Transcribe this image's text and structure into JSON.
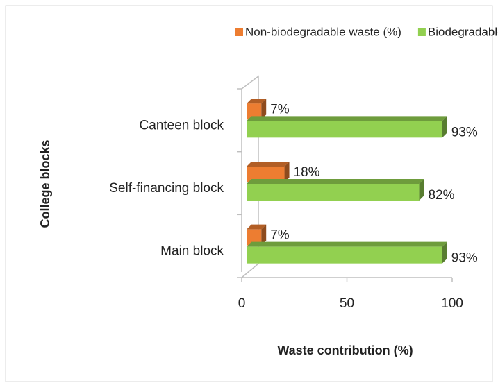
{
  "chart_data": {
    "type": "bar3d_horizontal",
    "xlabel": "Waste contribution (%)",
    "ylabel": "College blocks",
    "categories": [
      "Main block",
      "Self-financing block",
      "Canteen block"
    ],
    "series": [
      {
        "name": "Non-biodegradable waste (%)",
        "color": "#ed7d31",
        "values": [
          7,
          18,
          7
        ],
        "value_labels": [
          "7%",
          "18%",
          "7%"
        ]
      },
      {
        "name": "Biodegradable waste (%)",
        "color": "#92d050",
        "values": [
          93,
          82,
          93
        ],
        "value_labels": [
          "93%",
          "82%",
          "93%"
        ]
      }
    ],
    "xlim": [
      0,
      100
    ],
    "xticks": [
      0,
      50,
      100
    ],
    "legend": "top"
  }
}
